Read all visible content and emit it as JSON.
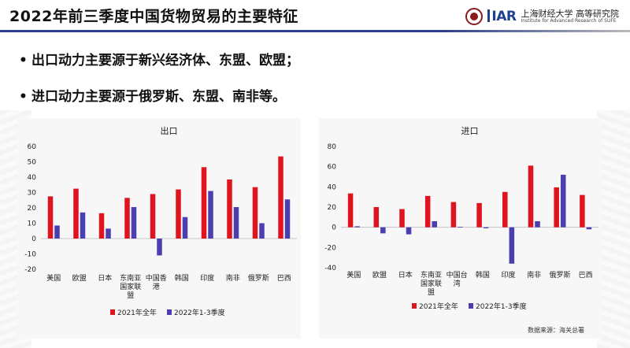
{
  "header": {
    "title": "2022年前三季度中国货物贸易的主要特征",
    "logo_iar": "IAR",
    "logo_cn": "上海财经大学 高等研究院",
    "logo_en": "Institute for Advanced Research of SUFE"
  },
  "bullets": [
    "出口动力主要源于新兴经济体、东盟、欧盟；",
    "进口动力主要源于俄罗斯、东盟、南非等。"
  ],
  "source": "数据来源：海关总署",
  "colors": {
    "series_2021": "#e0141e",
    "series_2022": "#4b3fb0",
    "accent": "#2a3f8f"
  },
  "chart_data": [
    {
      "type": "bar",
      "title": "出口",
      "categories": [
        "美国",
        "欧盟",
        "日本",
        "东南亚国家联盟",
        "中国香港",
        "韩国",
        "印度",
        "南非",
        "俄罗斯",
        "巴西"
      ],
      "category_lines": [
        [
          "美国"
        ],
        [
          "欧盟"
        ],
        [
          "日本"
        ],
        [
          "东南亚",
          "国家联",
          "盟"
        ],
        [
          "中国香",
          "港"
        ],
        [
          "韩国"
        ],
        [
          "印度"
        ],
        [
          "南非"
        ],
        [
          "俄罗斯"
        ],
        [
          "巴西"
        ]
      ],
      "series": [
        {
          "name": "2021年全年",
          "values": [
            27.5,
            32.5,
            16.5,
            26.5,
            29,
            32,
            46.5,
            38.5,
            33.5,
            53.5
          ]
        },
        {
          "name": "2022年1-3季度",
          "values": [
            8.5,
            17,
            6.5,
            20.5,
            -11,
            14,
            31,
            20.5,
            10,
            25.5
          ]
        }
      ],
      "ylim": [
        -20,
        60
      ],
      "yticks": [
        -20,
        -10,
        0,
        10,
        20,
        30,
        40,
        50,
        60
      ],
      "grid": false,
      "legend": "bottom"
    },
    {
      "type": "bar",
      "title": "进口",
      "categories": [
        "美国",
        "欧盟",
        "日本",
        "东南亚国家联盟",
        "中国台湾",
        "韩国",
        "印度",
        "南非",
        "俄罗斯",
        "巴西"
      ],
      "category_lines": [
        [
          "美国"
        ],
        [
          "欧盟"
        ],
        [
          "日本"
        ],
        [
          "东南亚",
          "国家联",
          "盟"
        ],
        [
          "中国台",
          "湾"
        ],
        [
          "韩国"
        ],
        [
          "印度"
        ],
        [
          "南非"
        ],
        [
          "俄罗斯"
        ],
        [
          "巴西"
        ]
      ],
      "series": [
        {
          "name": "2021年全年",
          "values": [
            33.5,
            20,
            18,
            31,
            25,
            24,
            35,
            61,
            39.5,
            32
          ]
        },
        {
          "name": "2022年1-3季度",
          "values": [
            1,
            -6,
            -7,
            6,
            0.5,
            -1,
            -36,
            6,
            52,
            -2
          ]
        }
      ],
      "ylim": [
        -40,
        80
      ],
      "yticks": [
        -40,
        -20,
        0,
        20,
        40,
        60,
        80
      ],
      "grid": false,
      "legend": "bottom"
    }
  ]
}
